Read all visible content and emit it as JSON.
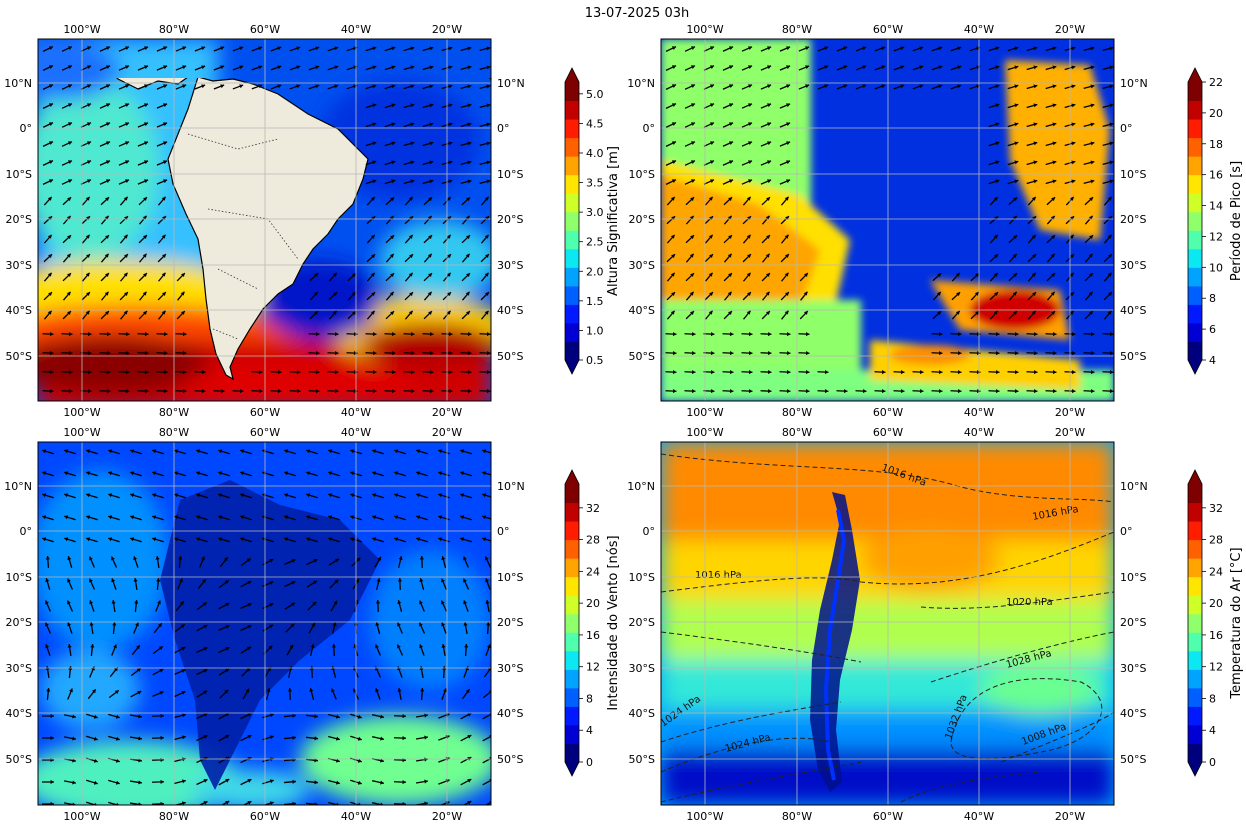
{
  "figure_title": "13-07-2025 03h",
  "lon_ticks": [
    "100°W",
    "80°W",
    "60°W",
    "40°W",
    "20°W"
  ],
  "lat_ticks": [
    "10°N",
    "0°",
    "10°S",
    "20°S",
    "30°S",
    "40°S",
    "50°S"
  ],
  "panels": [
    {
      "variable": "significant-wave-height",
      "colorbar_label": "Altura Significativa [m]",
      "colorbar_ticks": [
        "5.0",
        "4.5",
        "4.0",
        "3.5",
        "3.0",
        "2.5",
        "2.0",
        "1.5",
        "1.0",
        "0.5"
      ],
      "colorbar_range": [
        0.5,
        5.0
      ],
      "vectors": "wave direction arrows"
    },
    {
      "variable": "peak-period",
      "colorbar_label": "Período de Pico [s]",
      "colorbar_ticks": [
        "22",
        "20",
        "18",
        "16",
        "14",
        "12",
        "10",
        "8",
        "6",
        "4"
      ],
      "colorbar_range": [
        4,
        22
      ],
      "vectors": "wave direction arrows"
    },
    {
      "variable": "wind-speed",
      "colorbar_label": "Intensidade do Vento [nós]",
      "colorbar_ticks": [
        "32",
        "28",
        "24",
        "20",
        "16",
        "12",
        "8",
        "4",
        "0"
      ],
      "colorbar_range": [
        0,
        32
      ],
      "vectors": "wind arrows"
    },
    {
      "variable": "air-temperature",
      "colorbar_label": "Temperatura do Ar [°C]",
      "colorbar_ticks": [
        "32",
        "28",
        "24",
        "20",
        "16",
        "12",
        "8",
        "4",
        "0"
      ],
      "colorbar_range": [
        0,
        32
      ],
      "isobar_labels": [
        "1016 hPa",
        "1016 hPa",
        "1016 hPa",
        "1020 hPa",
        "1028 hPa",
        "1032 hPa",
        "1024 hPa",
        "1024 hPa",
        "1008 hPa"
      ]
    }
  ],
  "colors": {
    "jet": [
      "#00007f",
      "#0000d4",
      "#0019ff",
      "#0060ff",
      "#00a4ff",
      "#0ce8f2",
      "#4fffad",
      "#8fff6b",
      "#cfff29",
      "#ffe500",
      "#ffa400",
      "#ff6000",
      "#fe1d00",
      "#c10000",
      "#7f0000"
    ],
    "land": "#efebdc",
    "grid": "#b8b8b8"
  }
}
